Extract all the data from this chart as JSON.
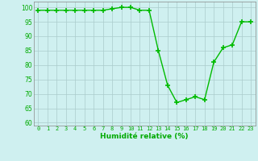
{
  "x": [
    0,
    1,
    2,
    3,
    4,
    5,
    6,
    7,
    8,
    9,
    10,
    11,
    12,
    13,
    14,
    15,
    16,
    17,
    18,
    19,
    20,
    21,
    22,
    23
  ],
  "y": [
    99,
    99,
    99,
    99,
    99,
    99,
    99,
    99,
    99.5,
    100,
    100,
    99,
    99,
    85,
    73,
    67,
    68,
    69,
    68,
    81,
    86,
    87,
    95,
    95
  ],
  "line_color": "#00bb00",
  "marker_color": "#00bb00",
  "bg_color": "#cff0f0",
  "grid_color": "#aacccc",
  "xlabel": "Humidité relative (%)",
  "xlabel_color": "#00aa00",
  "tick_color": "#00aa00",
  "ylim": [
    59,
    102
  ],
  "xlim": [
    -0.5,
    23.5
  ],
  "yticks": [
    60,
    65,
    70,
    75,
    80,
    85,
    90,
    95,
    100
  ],
  "xticks": [
    0,
    1,
    2,
    3,
    4,
    5,
    6,
    7,
    8,
    9,
    10,
    11,
    12,
    13,
    14,
    15,
    16,
    17,
    18,
    19,
    20,
    21,
    22,
    23
  ]
}
